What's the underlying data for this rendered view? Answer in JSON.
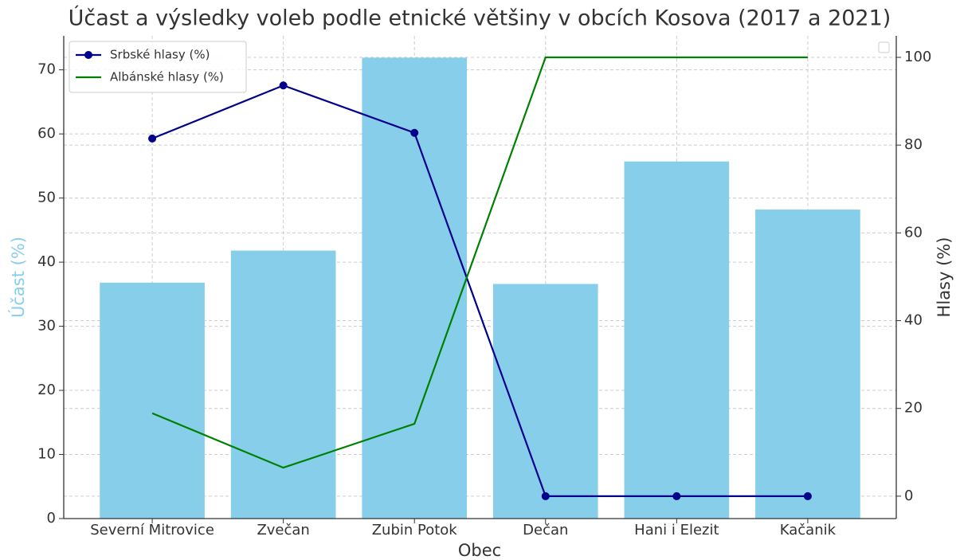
{
  "chart_data": {
    "type": "bar_line",
    "title": "Účast a výsledky voleb podle etnické většiny v obcích Kosova (2017 a 2021)",
    "xlabel": "Obec",
    "ylabel": "Účast (%)",
    "y2label": "Hlasy (%)",
    "categories": [
      "Severní Mitrovice",
      "Zvečan",
      "Zubin Potok",
      "Dečan",
      "Hani i Elezit",
      "Kačanik"
    ],
    "bar": {
      "name": "Účast (%)",
      "color": "#87ceeb",
      "values": [
        36.8,
        41.8,
        71.9,
        36.6,
        55.7,
        48.2
      ]
    },
    "series": [
      {
        "name": "Srbské hlasy (%)",
        "color": "#00008b",
        "marker": true,
        "axis": "y2",
        "values": [
          81.5,
          93.6,
          82.8,
          0,
          0,
          0
        ]
      },
      {
        "name": "Albánské hlasy (%)",
        "color": "#008000",
        "marker": false,
        "axis": "y2",
        "values": [
          18.9,
          6.5,
          16.5,
          100,
          100,
          100
        ]
      }
    ],
    "ylim": [
      0,
      75.3
    ],
    "yticks": [
      0,
      10,
      20,
      30,
      40,
      50,
      60,
      70
    ],
    "y2lim": [
      -5.1,
      104.9
    ],
    "y2ticks": [
      0,
      20,
      40,
      60,
      80,
      100
    ],
    "grid": true,
    "legend": "upper left"
  }
}
